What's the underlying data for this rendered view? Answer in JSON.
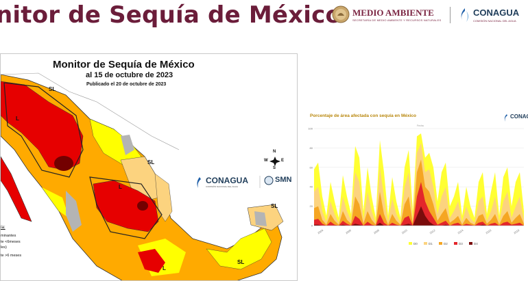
{
  "header": {
    "title": "nitor de Sequía de México",
    "medio_ambiente": "MEDIO AMBIENTE",
    "medio_ambiente_sub": "SECRETARÍA DE MEDIO AMBIENTE Y RECURSOS NATURALES",
    "conagua": "CONAGUA",
    "conagua_sub": "COMISIÓN NACIONAL DEL AGUA"
  },
  "map": {
    "title": "Monitor de Sequía de México",
    "date": "al 15 de octubre de 2023",
    "published": "Publicado el 20 de octubre de 2023",
    "conagua_label": "CONAGUA",
    "conagua_sub": "COMISIÓN NACIONAL DEL AGUA",
    "smn_label": "SMN",
    "compass": {
      "n": "N",
      "s": "S",
      "e": "E",
      "w": "W"
    },
    "legend": {
      "title": "ía:",
      "lines": [
        "minantes",
        "te <6meses",
        "les)",
        "te >6 meses"
      ]
    },
    "regions": [
      "SL",
      "L",
      "SL",
      "L",
      "SL",
      "SL",
      "L"
    ],
    "colors": {
      "D0": "#ffff00",
      "D1": "#fcd37f",
      "D2": "#ffaa00",
      "D3": "#e60000",
      "D4": "#730000",
      "none": "#ffffff",
      "gray": "#b4b4b4"
    }
  },
  "chart_data": {
    "type": "area",
    "title": "Porcentaje de área afectada con sequía en México",
    "xlabel": "Fecha",
    "ylabel": "",
    "ylim": [
      0,
      100
    ],
    "yticks": [
      0,
      20,
      40,
      60,
      80,
      100
    ],
    "xticks": [
      "2004",
      "2006",
      "2008",
      "2010",
      "2012",
      "2014",
      "2016",
      "2018"
    ],
    "legend": [
      "D0",
      "D1",
      "D2",
      "D3",
      "D4"
    ],
    "legend_position": "bottom",
    "colors": {
      "D0": "#ffff33",
      "D1": "#fcd37f",
      "D2": "#f5a623",
      "D3": "#e3262b",
      "D4": "#7a0c0c"
    },
    "x": [
      "2003-01",
      "2003-03",
      "2003-06",
      "2003-09",
      "2004-01",
      "2004-06",
      "2004-10",
      "2005-02",
      "2005-06",
      "2005-10",
      "2006-02",
      "2006-06",
      "2006-10",
      "2007-02",
      "2007-06",
      "2007-10",
      "2008-02",
      "2008-06",
      "2008-10",
      "2009-02",
      "2009-06",
      "2009-10",
      "2010-02",
      "2010-06",
      "2010-10",
      "2011-02",
      "2011-06",
      "2011-10",
      "2012-02",
      "2012-06",
      "2012-10",
      "2013-02",
      "2013-06",
      "2013-10",
      "2014-02",
      "2014-06",
      "2014-10",
      "2015-02",
      "2015-06",
      "2015-10",
      "2016-02",
      "2016-06",
      "2016-10",
      "2017-02",
      "2017-06",
      "2017-10",
      "2018-02",
      "2018-06",
      "2018-10",
      "2019-02",
      "2019-06",
      "2019-10"
    ],
    "series": [
      {
        "name": "D0",
        "values": [
          58,
          65,
          30,
          10,
          45,
          25,
          8,
          52,
          30,
          12,
          82,
          70,
          15,
          60,
          30,
          8,
          88,
          55,
          10,
          50,
          25,
          8,
          60,
          78,
          15,
          92,
          95,
          70,
          75,
          60,
          25,
          55,
          65,
          20,
          30,
          45,
          10,
          40,
          20,
          8,
          45,
          55,
          12,
          35,
          55,
          10,
          50,
          60,
          20,
          45,
          55,
          15
        ]
      },
      {
        "name": "D1",
        "values": [
          35,
          40,
          15,
          4,
          25,
          12,
          3,
          30,
          15,
          5,
          55,
          45,
          6,
          35,
          15,
          3,
          60,
          30,
          4,
          28,
          12,
          3,
          40,
          55,
          6,
          75,
          85,
          55,
          58,
          40,
          12,
          30,
          40,
          8,
          15,
          25,
          4,
          20,
          8,
          3,
          25,
          30,
          5,
          15,
          30,
          4,
          25,
          35,
          8,
          20,
          30,
          6
        ]
      },
      {
        "name": "D2",
        "values": [
          18,
          20,
          6,
          1,
          12,
          5,
          1,
          15,
          6,
          2,
          30,
          22,
          2,
          15,
          6,
          1,
          35,
          12,
          1,
          12,
          5,
          1,
          22,
          30,
          2,
          55,
          68,
          40,
          35,
          22,
          5,
          12,
          18,
          3,
          6,
          10,
          1,
          8,
          3,
          1,
          10,
          12,
          2,
          6,
          12,
          1,
          10,
          15,
          3,
          8,
          12,
          2
        ]
      },
      {
        "name": "D3",
        "values": [
          6,
          7,
          2,
          0,
          4,
          1,
          0,
          5,
          2,
          0,
          10,
          7,
          0,
          4,
          1,
          0,
          12,
          3,
          0,
          3,
          1,
          0,
          8,
          10,
          0,
          30,
          45,
          25,
          15,
          8,
          1,
          3,
          5,
          0,
          2,
          3,
          0,
          2,
          1,
          0,
          3,
          4,
          0,
          2,
          3,
          0,
          3,
          4,
          1,
          2,
          3,
          0
        ]
      },
      {
        "name": "D4",
        "values": [
          1,
          1,
          0,
          0,
          0,
          0,
          0,
          1,
          0,
          0,
          2,
          1,
          0,
          0,
          0,
          0,
          3,
          0,
          0,
          0,
          0,
          0,
          1,
          2,
          0,
          10,
          20,
          10,
          4,
          1,
          0,
          0,
          1,
          0,
          0,
          0,
          0,
          0,
          0,
          0,
          0,
          1,
          0,
          0,
          0,
          0,
          0,
          0,
          0,
          0,
          0,
          0
        ]
      }
    ]
  }
}
